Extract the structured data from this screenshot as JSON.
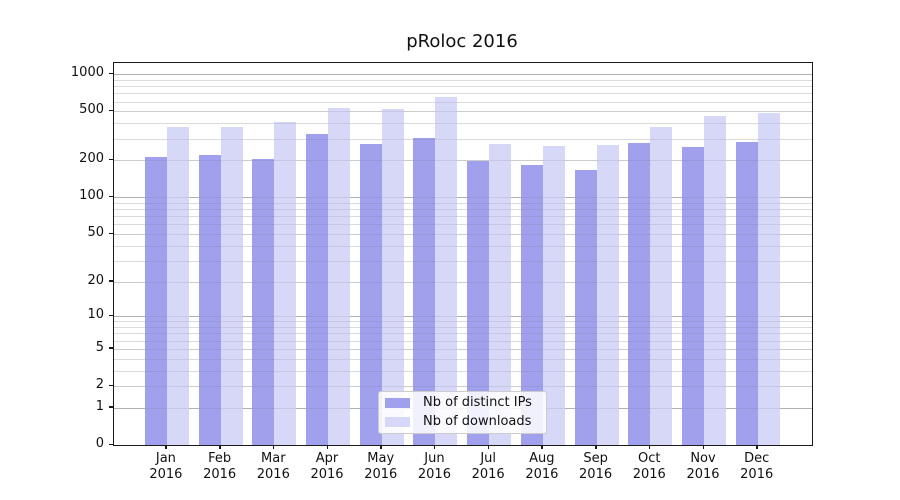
{
  "title": "pRoloc 2016",
  "legend": {
    "items": [
      {
        "label": "Nb of distinct IPs",
        "color": "#a0a0ed"
      },
      {
        "label": "Nb of downloads",
        "color": "#d7d7f7"
      }
    ]
  },
  "y_axis": {
    "tick_labels": [
      "0",
      "1",
      "2",
      "5",
      "10",
      "20",
      "50",
      "100",
      "200",
      "500",
      "1000"
    ],
    "tick_values": [
      0,
      1,
      2,
      5,
      10,
      20,
      50,
      100,
      200,
      500,
      1000
    ],
    "decade_values": [
      1,
      10,
      100,
      1000
    ],
    "minor_values": [
      3,
      4,
      6,
      7,
      8,
      9,
      30,
      40,
      60,
      70,
      80,
      90,
      300,
      400,
      600,
      700,
      800,
      900
    ]
  },
  "x_axis": {
    "months": [
      "Jan",
      "Feb",
      "Mar",
      "Apr",
      "May",
      "Jun",
      "Jul",
      "Aug",
      "Sep",
      "Oct",
      "Nov",
      "Dec"
    ],
    "year": "2016"
  },
  "chart_data": {
    "type": "bar",
    "title": "pRoloc 2016",
    "categories": [
      "Jan 2016",
      "Feb 2016",
      "Mar 2016",
      "Apr 2016",
      "May 2016",
      "Jun 2016",
      "Jul 2016",
      "Aug 2016",
      "Sep 2016",
      "Oct 2016",
      "Nov 2016",
      "Dec 2016"
    ],
    "series": [
      {
        "name": "Nb of distinct IPs",
        "color": "#a0a0ed",
        "values": [
          215,
          220,
          207,
          329,
          272,
          306,
          199,
          185,
          166,
          275,
          257,
          283
        ]
      },
      {
        "name": "Nb of downloads",
        "color": "#d7d7f7",
        "values": [
          374,
          376,
          408,
          531,
          519,
          660,
          271,
          262,
          266,
          374,
          462,
          488
        ]
      }
    ],
    "xlabel": "",
    "ylabel": "",
    "ylim": [
      0,
      1000
    ],
    "yscale": "log1p",
    "grid": "both",
    "legend_position": "lower center"
  }
}
